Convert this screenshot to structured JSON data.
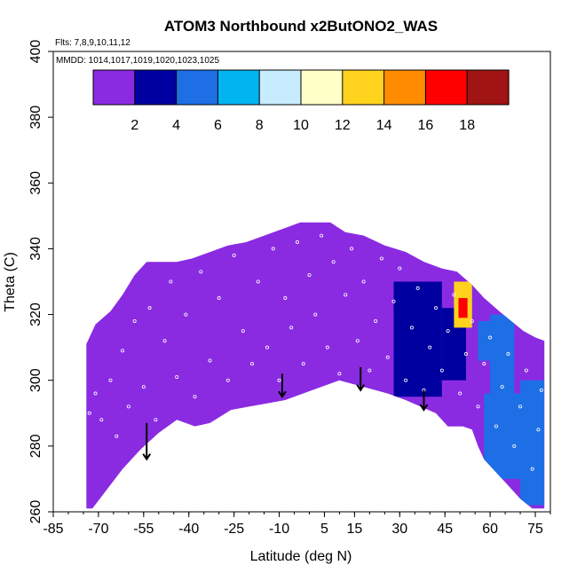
{
  "chart_data": {
    "type": "heatmap",
    "title": "ATOM3 Northbound x2ButONO2_WAS",
    "flights_note": "Flts: 7,8,9,10,11,12",
    "mmdd_note": "MMDD: 1014,1017,1019,1020,1023,1025",
    "xlabel": "Latitude (deg N)",
    "ylabel": "Theta (C)",
    "xlim": [
      -85,
      80
    ],
    "ylim": [
      260,
      400
    ],
    "x_ticks": [
      -85,
      -70,
      -55,
      -40,
      -25,
      -10,
      5,
      15,
      30,
      45,
      60,
      75
    ],
    "y_ticks": [
      260,
      280,
      300,
      320,
      340,
      360,
      380,
      400
    ],
    "colorbar": {
      "range": [
        0,
        20
      ],
      "ticks": [
        2,
        4,
        6,
        8,
        10,
        12,
        14,
        16,
        18
      ],
      "colors": [
        "#8a2be2",
        "#0000a0",
        "#1e6fe6",
        "#00b4f0",
        "#c8ecff",
        "#ffffc8",
        "#ffd21e",
        "#ff8c00",
        "#ff0000",
        "#a01414"
      ]
    },
    "curtain_top": [
      [
        -74,
        311
      ],
      [
        -71,
        317
      ],
      [
        -66,
        321
      ],
      [
        -62,
        326
      ],
      [
        -58,
        332
      ],
      [
        -54,
        336
      ],
      [
        -49,
        336
      ],
      [
        -44,
        336
      ],
      [
        -39,
        337
      ],
      [
        -33,
        339
      ],
      [
        -27,
        341
      ],
      [
        -21,
        342
      ],
      [
        -15,
        344
      ],
      [
        -9,
        346
      ],
      [
        -3,
        348
      ],
      [
        2,
        348
      ],
      [
        7,
        348
      ],
      [
        12,
        345
      ],
      [
        18,
        344
      ],
      [
        25,
        341
      ],
      [
        32,
        339
      ],
      [
        38,
        336
      ],
      [
        44,
        334
      ],
      [
        49,
        333
      ],
      [
        54,
        329
      ],
      [
        58,
        325
      ],
      [
        63,
        321
      ],
      [
        67,
        318
      ],
      [
        71,
        315
      ],
      [
        75,
        313
      ],
      [
        78,
        312
      ]
    ],
    "curtain_bottom": [
      [
        78,
        261
      ],
      [
        74,
        261
      ],
      [
        70,
        264
      ],
      [
        66,
        268
      ],
      [
        62,
        272
      ],
      [
        58,
        276
      ],
      [
        56,
        280
      ],
      [
        54,
        285
      ],
      [
        51,
        286
      ],
      [
        46,
        286
      ],
      [
        42,
        290
      ],
      [
        37,
        292
      ],
      [
        32,
        294
      ],
      [
        26,
        296
      ],
      [
        18,
        298
      ],
      [
        10,
        300
      ],
      [
        4,
        298
      ],
      [
        -2,
        296
      ],
      [
        -8,
        294
      ],
      [
        -14,
        293
      ],
      [
        -20,
        292
      ],
      [
        -26,
        291
      ],
      [
        -33,
        287
      ],
      [
        -38,
        286
      ],
      [
        -44,
        288
      ],
      [
        -50,
        284
      ],
      [
        -56,
        279
      ],
      [
        -62,
        273
      ],
      [
        -67,
        267
      ],
      [
        -72,
        261
      ],
      [
        -74,
        261
      ]
    ],
    "patches": [
      {
        "x": [
          -58,
          -50
        ],
        "y": [
          300,
          312
        ],
        "value": 1.2
      },
      {
        "x": [
          -30,
          -22
        ],
        "y": [
          296,
          310
        ],
        "value": 1.3
      },
      {
        "x": [
          -16,
          -6
        ],
        "y": [
          298,
          320
        ],
        "value": 1.0
      },
      {
        "x": [
          -4,
          8
        ],
        "y": [
          305,
          320
        ],
        "value": 1.2
      },
      {
        "x": [
          10,
          78
        ],
        "y": [
          262,
          345
        ],
        "value": 1.8
      },
      {
        "x": [
          28,
          44
        ],
        "y": [
          295,
          330
        ],
        "value": 2.6
      },
      {
        "x": [
          44,
          52
        ],
        "y": [
          300,
          322
        ],
        "value": 3.0
      },
      {
        "x": [
          56,
          62
        ],
        "y": [
          306,
          318
        ],
        "value": 4.8
      },
      {
        "x": [
          60,
          68
        ],
        "y": [
          296,
          320
        ],
        "value": 4.2
      },
      {
        "x": [
          58,
          72
        ],
        "y": [
          270,
          296
        ],
        "value": 5.0
      },
      {
        "x": [
          70,
          78
        ],
        "y": [
          262,
          300
        ],
        "value": 5.6
      },
      {
        "x": [
          48,
          54
        ],
        "y": [
          316,
          330
        ],
        "value": 12.5
      },
      {
        "x": [
          49.5,
          52.5
        ],
        "y": [
          319,
          325
        ],
        "value": 16.0
      },
      {
        "x": [
          50,
          52
        ],
        "y": [
          321,
          323
        ],
        "value": 17.5
      }
    ],
    "sample_points": [
      [
        -73,
        290
      ],
      [
        -71,
        296
      ],
      [
        -69,
        288
      ],
      [
        -66,
        300
      ],
      [
        -64,
        283
      ],
      [
        -62,
        309
      ],
      [
        -60,
        292
      ],
      [
        -58,
        318
      ],
      [
        -55,
        298
      ],
      [
        -53,
        322
      ],
      [
        -51,
        288
      ],
      [
        -48,
        312
      ],
      [
        -46,
        330
      ],
      [
        -44,
        301
      ],
      [
        -41,
        320
      ],
      [
        -38,
        295
      ],
      [
        -36,
        333
      ],
      [
        -33,
        306
      ],
      [
        -30,
        325
      ],
      [
        -27,
        300
      ],
      [
        -25,
        338
      ],
      [
        -22,
        315
      ],
      [
        -19,
        305
      ],
      [
        -17,
        330
      ],
      [
        -14,
        310
      ],
      [
        -12,
        340
      ],
      [
        -10,
        300
      ],
      [
        -8,
        325
      ],
      [
        -6,
        316
      ],
      [
        -4,
        342
      ],
      [
        -2,
        305
      ],
      [
        0,
        332
      ],
      [
        2,
        320
      ],
      [
        4,
        344
      ],
      [
        6,
        310
      ],
      [
        8,
        336
      ],
      [
        10,
        302
      ],
      [
        12,
        326
      ],
      [
        14,
        340
      ],
      [
        16,
        312
      ],
      [
        18,
        330
      ],
      [
        20,
        303
      ],
      [
        22,
        318
      ],
      [
        24,
        337
      ],
      [
        26,
        307
      ],
      [
        28,
        324
      ],
      [
        30,
        334
      ],
      [
        32,
        300
      ],
      [
        34,
        316
      ],
      [
        36,
        328
      ],
      [
        38,
        297
      ],
      [
        40,
        310
      ],
      [
        42,
        322
      ],
      [
        44,
        303
      ],
      [
        46,
        315
      ],
      [
        48,
        326
      ],
      [
        50,
        296
      ],
      [
        52,
        308
      ],
      [
        54,
        318
      ],
      [
        56,
        292
      ],
      [
        58,
        305
      ],
      [
        60,
        313
      ],
      [
        62,
        286
      ],
      [
        64,
        298
      ],
      [
        66,
        308
      ],
      [
        68,
        280
      ],
      [
        70,
        292
      ],
      [
        72,
        303
      ],
      [
        74,
        273
      ],
      [
        76,
        285
      ],
      [
        77,
        297
      ]
    ],
    "arrows": [
      {
        "x": -54,
        "theta_top": 287,
        "theta_tip": 276
      },
      {
        "x": -9,
        "theta_top": 302,
        "theta_tip": 295
      },
      {
        "x": 17,
        "theta_top": 304,
        "theta_tip": 297
      },
      {
        "x": 38,
        "theta_top": 297,
        "theta_tip": 291
      }
    ]
  }
}
